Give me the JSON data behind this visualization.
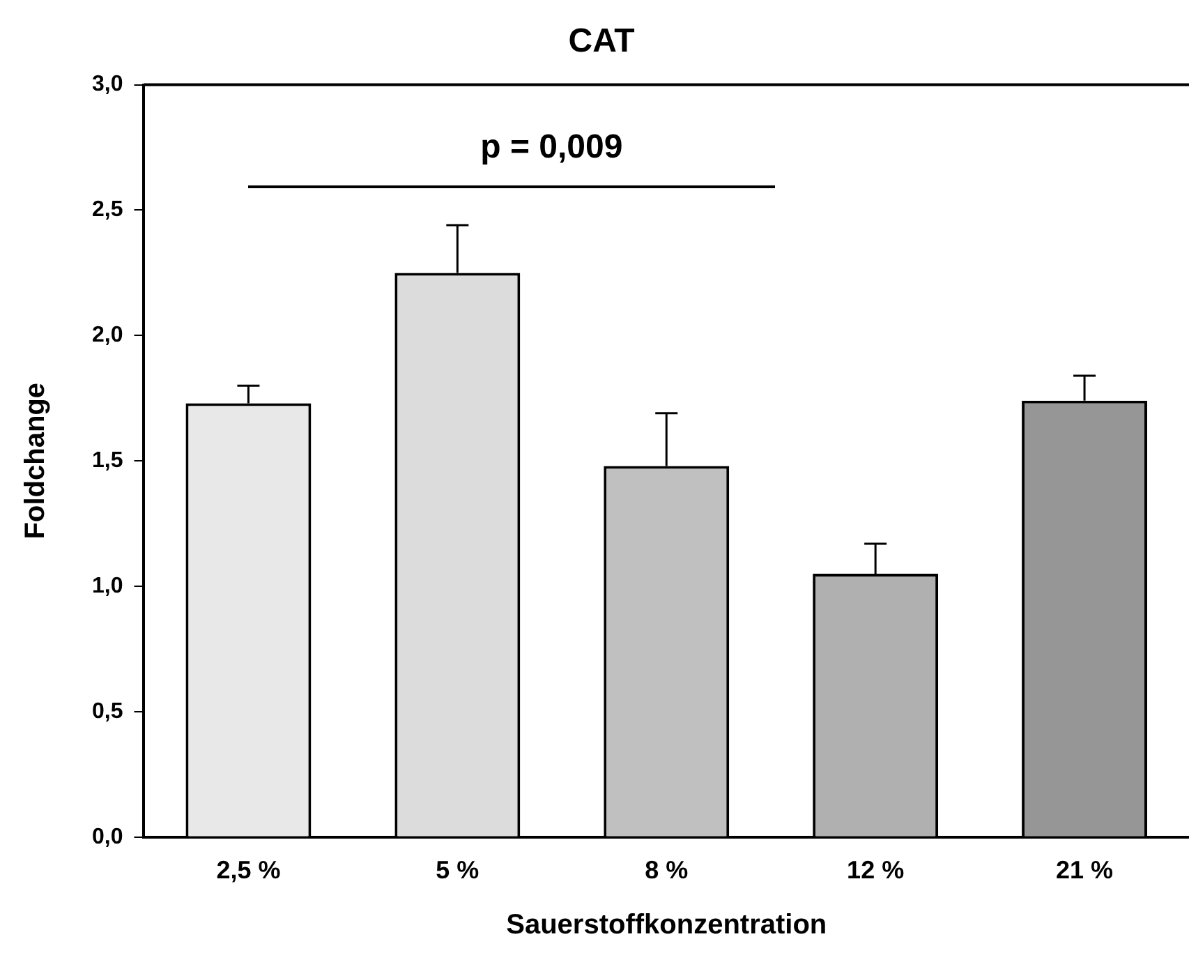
{
  "chart_data": {
    "type": "bar",
    "title": "CAT",
    "xlabel": "Sauerstoffkonzentration",
    "ylabel": "Foldchange",
    "categories": [
      "2,5 %",
      "5 %",
      "8 %",
      "12 %",
      "21 %"
    ],
    "values": [
      1.73,
      2.25,
      1.48,
      1.05,
      1.74
    ],
    "errors": [
      [
        1.73,
        1.8
      ],
      [
        2.25,
        2.44
      ],
      [
        1.48,
        1.69
      ],
      [
        1.05,
        1.17
      ],
      [
        1.74,
        1.84
      ]
    ],
    "colors": [
      "#e8e8e8",
      "#dcdcdc",
      "#c0c0c0",
      "#b0b0b0",
      "#969696"
    ],
    "ylim": [
      0,
      3
    ],
    "yticks": [
      {
        "value": 0,
        "label": "0,0"
      },
      {
        "value": 0.5,
        "label": "0,5"
      },
      {
        "value": 1,
        "label": "1,0"
      },
      {
        "value": 1.5,
        "label": "1,5"
      },
      {
        "value": 2,
        "label": "2,0"
      },
      {
        "value": 2.5,
        "label": "2,5"
      },
      {
        "value": 3,
        "label": "3,0"
      }
    ],
    "annotations": [
      "p = 0,009"
    ],
    "grid": false,
    "legend": false
  }
}
